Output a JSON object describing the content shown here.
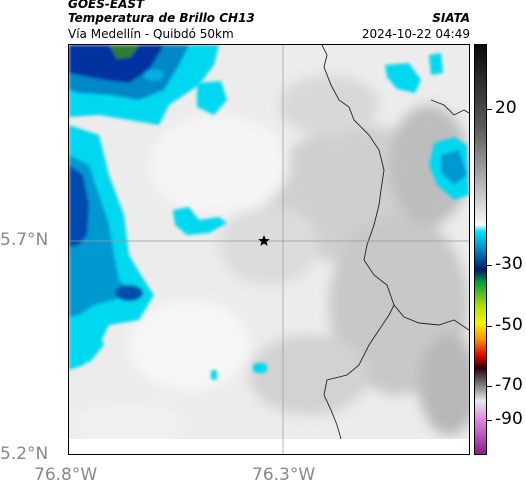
{
  "header": {
    "satellite": "GOES-EAST",
    "product": "Temperatura de Brillo CH13",
    "route": "Vía Medellín - Quibdó 50km",
    "organization": "SIATA",
    "datetime": "2024-10-22 04:49"
  },
  "map": {
    "lat_ticks": [
      "5.7°N",
      "5.2°N"
    ],
    "lon_ticks": [
      "76.8°W",
      "76.3°W"
    ],
    "marker": "star-marker"
  },
  "colorbar": {
    "ticks": [
      "20",
      "-30",
      "-50",
      "-70",
      "-90"
    ],
    "colors": {
      "cold_blue": "#001a66",
      "cyan": "#00d8f0",
      "green": "#00a03a",
      "yellow": "#f5f500",
      "red": "#e00000",
      "magenta": "#b020a0"
    }
  }
}
